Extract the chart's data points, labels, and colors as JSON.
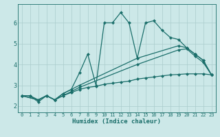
{
  "xlabel": "Humidex (Indice chaleur)",
  "ylabel": "",
  "bg_color": "#cce8e8",
  "grid_color": "#aacccc",
  "line_color": "#1a6e6a",
  "xlim": [
    -0.5,
    23.5
  ],
  "ylim": [
    1.7,
    6.9
  ],
  "xticks": [
    0,
    1,
    2,
    3,
    4,
    5,
    6,
    7,
    8,
    9,
    10,
    11,
    12,
    13,
    14,
    15,
    16,
    17,
    18,
    19,
    20,
    21,
    22,
    23
  ],
  "yticks": [
    2,
    3,
    4,
    5,
    6
  ],
  "lines": [
    {
      "x": [
        0,
        1,
        2,
        3,
        4,
        5,
        6,
        7,
        8,
        9,
        10,
        11,
        12,
        13,
        14,
        15,
        16,
        17,
        18,
        19,
        20,
        21,
        22,
        23
      ],
      "y": [
        2.5,
        2.5,
        2.2,
        2.5,
        2.3,
        2.6,
        2.8,
        3.6,
        4.5,
        3.0,
        6.0,
        6.0,
        6.5,
        6.0,
        4.3,
        6.0,
        6.1,
        5.65,
        5.3,
        5.2,
        4.8,
        4.5,
        4.2,
        3.5
      ]
    },
    {
      "x": [
        0,
        2,
        3,
        4,
        5,
        6,
        7,
        14,
        19,
        20,
        21,
        22,
        23
      ],
      "y": [
        2.5,
        2.3,
        2.5,
        2.3,
        2.6,
        2.8,
        3.0,
        4.3,
        4.9,
        4.8,
        4.5,
        4.2,
        3.5
      ]
    },
    {
      "x": [
        0,
        2,
        3,
        4,
        5,
        6,
        7,
        14,
        19,
        20,
        21,
        22,
        23
      ],
      "y": [
        2.5,
        2.3,
        2.5,
        2.3,
        2.5,
        2.7,
        2.9,
        4.0,
        4.7,
        4.75,
        4.4,
        4.1,
        3.5
      ]
    },
    {
      "x": [
        0,
        1,
        2,
        3,
        4,
        5,
        6,
        7,
        8,
        9,
        10,
        11,
        12,
        13,
        14,
        15,
        16,
        17,
        18,
        19,
        20,
        21,
        22,
        23
      ],
      "y": [
        2.5,
        2.5,
        2.3,
        2.5,
        2.3,
        2.5,
        2.65,
        2.8,
        2.9,
        2.95,
        3.05,
        3.1,
        3.15,
        3.2,
        3.3,
        3.35,
        3.4,
        3.45,
        3.5,
        3.52,
        3.55,
        3.55,
        3.55,
        3.5
      ]
    }
  ]
}
